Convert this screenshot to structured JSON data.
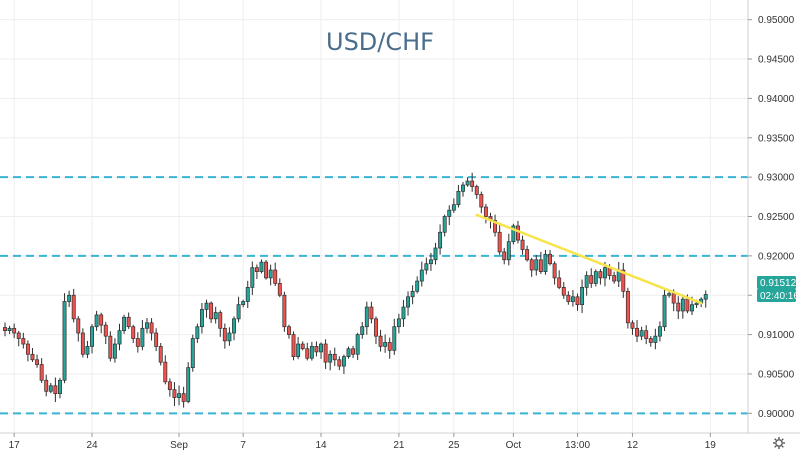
{
  "chart_data": {
    "type": "candlestick",
    "title": "USD/CHF",
    "ylim": [
      0.8975,
      0.9525
    ],
    "y_ticks": [
      "0.95000",
      "0.94500",
      "0.94000",
      "0.93500",
      "0.93000",
      "0.92500",
      "0.92000",
      "0.91500",
      "0.91000",
      "0.90500",
      "0.90000"
    ],
    "y_tick_values": [
      0.95,
      0.945,
      0.94,
      0.935,
      0.93,
      0.925,
      0.92,
      0.915,
      0.91,
      0.905,
      0.9
    ],
    "x_tick_labels": [
      "17",
      "24",
      "Sep",
      "7",
      "14",
      "21",
      "25",
      "Oct",
      "13:00",
      "12",
      "19"
    ],
    "x_tick_index": [
      2,
      19,
      38,
      52,
      69,
      86,
      98,
      111,
      125,
      137,
      154
    ],
    "horizontal_levels": [
      0.93,
      0.92,
      0.9
    ],
    "trend_line": {
      "from": [
        103,
        0.9252
      ],
      "to": [
        152,
        0.914
      ]
    },
    "last_price": "0.91512",
    "countdown": "02:40:16",
    "colors": {
      "up": "#26a69a",
      "down": "#ef5350",
      "candle": "#2e2e2e",
      "level_line": "#3ab4d4",
      "trend_line": "#f7e34a",
      "badge": "#26a69a",
      "grid": "#eeeeee",
      "title": "#4a6d8c"
    },
    "grid": true,
    "close": [
      0.9105,
      0.9108,
      0.9102,
      0.9095,
      0.9088,
      0.9075,
      0.9068,
      0.9062,
      0.9042,
      0.9028,
      0.9035,
      0.9025,
      0.9042,
      0.9142,
      0.915,
      0.912,
      0.9102,
      0.9075,
      0.9085,
      0.911,
      0.9125,
      0.9112,
      0.9098,
      0.907,
      0.9088,
      0.9105,
      0.9122,
      0.911,
      0.9095,
      0.9085,
      0.9108,
      0.9115,
      0.9102,
      0.9085,
      0.9065,
      0.904,
      0.903,
      0.902,
      0.9025,
      0.9015,
      0.9058,
      0.9095,
      0.911,
      0.9132,
      0.914,
      0.912,
      0.9128,
      0.9108,
      0.9092,
      0.9102,
      0.912,
      0.9138,
      0.9142,
      0.916,
      0.9185,
      0.918,
      0.9192,
      0.9172,
      0.9182,
      0.9165,
      0.915,
      0.911,
      0.91,
      0.9072,
      0.9088,
      0.9082,
      0.907,
      0.9085,
      0.9078,
      0.9088,
      0.9065,
      0.9075,
      0.9068,
      0.906,
      0.9072,
      0.9082,
      0.9075,
      0.91,
      0.911,
      0.9135,
      0.912,
      0.9098,
      0.9085,
      0.909,
      0.908,
      0.911,
      0.912,
      0.9135,
      0.9148,
      0.9155,
      0.9168,
      0.9182,
      0.919,
      0.9195,
      0.921,
      0.923,
      0.925,
      0.9258,
      0.9265,
      0.9282,
      0.929,
      0.9295,
      0.9288,
      0.9278,
      0.9262,
      0.925,
      0.9245,
      0.923,
      0.9205,
      0.9195,
      0.9218,
      0.9238,
      0.922,
      0.9208,
      0.9195,
      0.9182,
      0.9195,
      0.918,
      0.9202,
      0.919,
      0.9172,
      0.916,
      0.915,
      0.9142,
      0.9148,
      0.9138,
      0.916,
      0.9175,
      0.9165,
      0.918,
      0.9172,
      0.9185,
      0.9175,
      0.9168,
      0.9182,
      0.9155,
      0.9115,
      0.9108,
      0.9098,
      0.9105,
      0.9095,
      0.909,
      0.9098,
      0.911,
      0.915,
      0.9152,
      0.914,
      0.913,
      0.9145,
      0.913,
      0.9138,
      0.914,
      0.9145,
      0.9151
    ]
  }
}
